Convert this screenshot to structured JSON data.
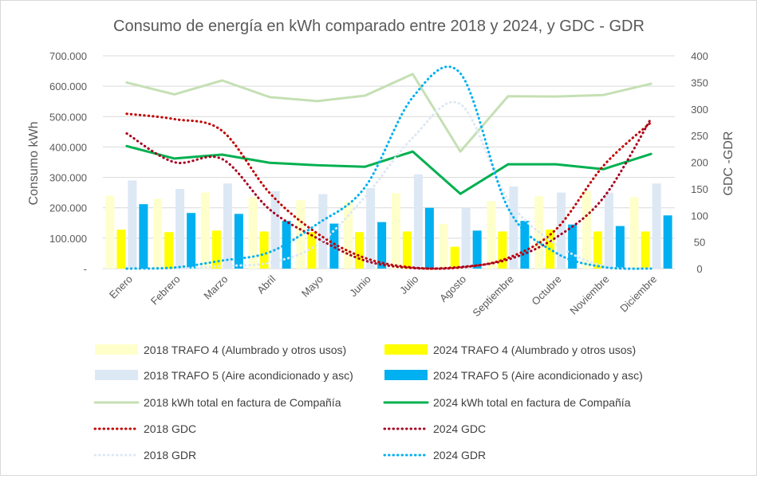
{
  "chart_data": {
    "type": "bar",
    "title": "Consumo de energía en kWh comparado entre 2018 y 2024, y GDC - GDR",
    "ylabel": "Consumo kWh",
    "y2label": "GDC -GDR",
    "ylim": [
      0,
      700000
    ],
    "y2lim": [
      0,
      400
    ],
    "y_ticks": [
      "-",
      "100.000",
      "200.000",
      "300.000",
      "400.000",
      "500.000",
      "600.000",
      "700.000"
    ],
    "y2_ticks": [
      "0",
      "50",
      "100",
      "150",
      "200",
      "250",
      "300",
      "350",
      "400"
    ],
    "grid": true,
    "legend_position": "bottom",
    "categories": [
      "Enero",
      "Febrero",
      "Marzo",
      "Abril",
      "Mayo",
      "Junio",
      "Julio",
      "Agosto",
      "Septiembre",
      "Octubre",
      "Noviembre",
      "Diciembre"
    ],
    "bar_series": [
      {
        "name": "2018 TRAFO 4 (Alumbrado y otros usos)",
        "color": "#ffffcc",
        "values": [
          240000,
          230000,
          250000,
          235000,
          225000,
          220000,
          248000,
          147000,
          222000,
          238000,
          255000,
          235000
        ]
      },
      {
        "name": "2024 TRAFO 4 (Alumbrado y otros usos)",
        "color": "#ffff00",
        "values": [
          128000,
          120000,
          125000,
          122000,
          120000,
          120000,
          122000,
          72000,
          122000,
          128000,
          122000,
          122000
        ]
      },
      {
        "name": "2018 TRAFO 5 (Aire acondicionado y asc)",
        "color": "#dde8f5",
        "values": [
          290000,
          262000,
          280000,
          255000,
          245000,
          265000,
          310000,
          200000,
          270000,
          250000,
          250000,
          280000
        ]
      },
      {
        "name": "2024 TRAFO 5 (Aire acondicionado y asc)",
        "color": "#00b0f0",
        "values": [
          212000,
          183000,
          180000,
          157000,
          148000,
          153000,
          200000,
          125000,
          157000,
          145000,
          140000,
          175000
        ]
      }
    ],
    "line_series": [
      {
        "name": "2018 kWh total en factura de Compañía",
        "color": "#c5e0b4",
        "dash": "solid",
        "axis": "left",
        "values": [
          612000,
          573000,
          619000,
          564000,
          551000,
          569000,
          640000,
          385000,
          567000,
          566000,
          571000,
          608000
        ]
      },
      {
        "name": "2024 kWh total en factura de Compañía",
        "color": "#00b050",
        "dash": "solid",
        "axis": "left",
        "values": [
          403000,
          362000,
          375000,
          348000,
          340000,
          335000,
          385000,
          246000,
          343000,
          343000,
          327000,
          377000
        ]
      },
      {
        "name": "2018 GDC",
        "color": "#c00000",
        "dash": "dotted",
        "axis": "right",
        "values": [
          291,
          281,
          259,
          142,
          66,
          20,
          2,
          2,
          20,
          73,
          193,
          275
        ]
      },
      {
        "name": "2024 GDC",
        "color": "#a50021",
        "dash": "dotted",
        "axis": "right",
        "values": [
          254,
          200,
          206,
          111,
          57,
          15,
          1,
          3,
          17,
          58,
          133,
          282
        ]
      },
      {
        "name": "2018 GDR",
        "color": "#dde8f5",
        "dash": "dotted",
        "axis": "right",
        "values": [
          0,
          0,
          5,
          11,
          45,
          135,
          246,
          309,
          130,
          46,
          5,
          0
        ]
      },
      {
        "name": "2024 GDR",
        "color": "#00b0f0",
        "dash": "dotted",
        "axis": "right",
        "values": [
          0,
          2,
          15,
          31,
          84,
          153,
          322,
          367,
          114,
          30,
          3,
          0
        ]
      }
    ]
  }
}
